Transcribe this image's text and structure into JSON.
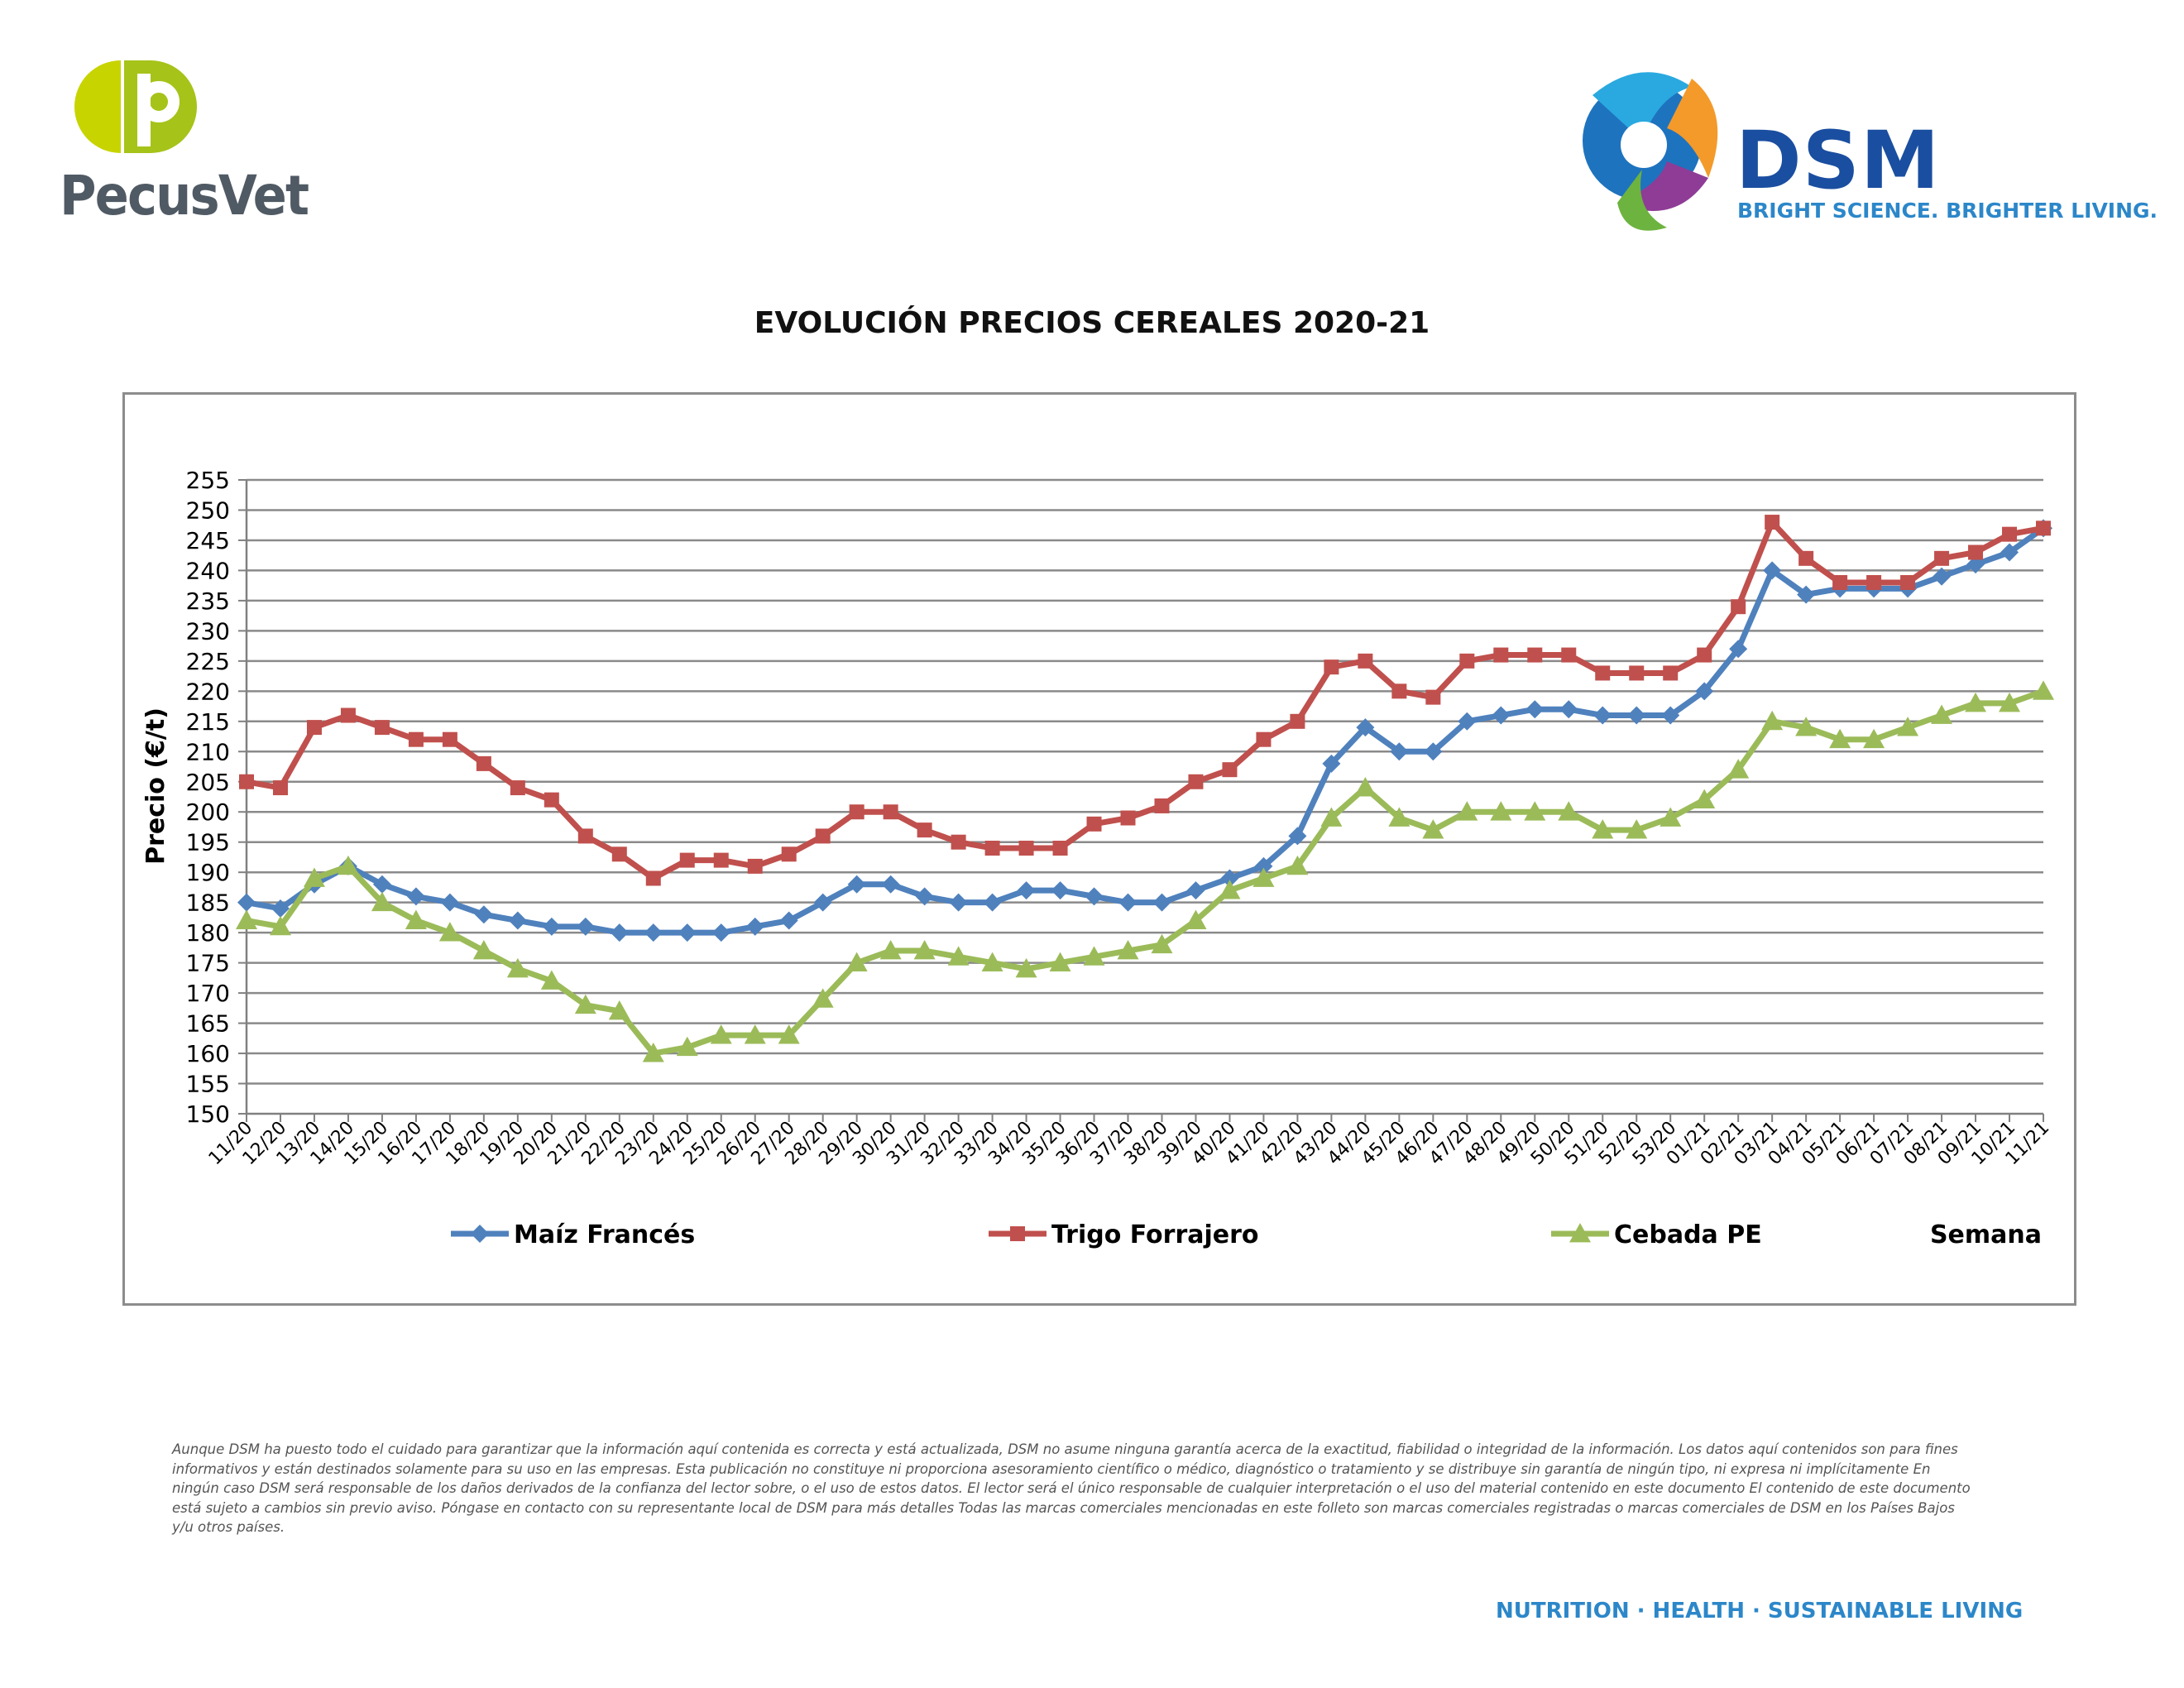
{
  "header": {
    "left_logo_text": "PecusVet",
    "right_logo_name": "DSM",
    "right_logo_tagline": "BRIGHT SCIENCE. BRIGHTER LIVING."
  },
  "chart_data": {
    "type": "line",
    "title": "EVOLUCIÓN PRECIOS CEREALES 2020-21",
    "ylabel": "Precio (€/t)",
    "xlabel": "Semana",
    "ylim": [
      150,
      255
    ],
    "ystep": 5,
    "grid": true,
    "legend": "bottom",
    "categories": [
      "11/20",
      "12/20",
      "13/20",
      "14/20",
      "15/20",
      "16/20",
      "17/20",
      "18/20",
      "19/20",
      "20/20",
      "21/20",
      "22/20",
      "23/20",
      "24/20",
      "25/20",
      "26/20",
      "27/20",
      "28/20",
      "29/20",
      "30/20",
      "31/20",
      "32/20",
      "33/20",
      "34/20",
      "35/20",
      "36/20",
      "37/20",
      "38/20",
      "39/20",
      "40/20",
      "41/20",
      "42/20",
      "43/20",
      "44/20",
      "45/20",
      "46/20",
      "47/20",
      "48/20",
      "49/20",
      "50/20",
      "51/20",
      "52/20",
      "53/20",
      "01/21",
      "02/21",
      "03/21",
      "04/21",
      "05/21",
      "06/21",
      "07/21",
      "08/21",
      "09/21",
      "10/21",
      "11/21"
    ],
    "series": [
      {
        "name": "Maíz Francés",
        "color": "#4f81bd",
        "marker": "diamond",
        "values": [
          185,
          184,
          188,
          191,
          188,
          186,
          185,
          183,
          182,
          181,
          181,
          180,
          180,
          180,
          180,
          181,
          182,
          185,
          188,
          188,
          186,
          185,
          185,
          187,
          187,
          186,
          185,
          185,
          187,
          189,
          191,
          196,
          208,
          214,
          210,
          210,
          215,
          216,
          217,
          217,
          216,
          216,
          216,
          220,
          227,
          240,
          236,
          237,
          237,
          237,
          239,
          241,
          243,
          247
        ]
      },
      {
        "name": "Trigo Forrajero",
        "color": "#c0504d",
        "marker": "square",
        "values": [
          205,
          204,
          214,
          216,
          214,
          212,
          212,
          208,
          204,
          202,
          196,
          193,
          189,
          192,
          192,
          191,
          193,
          196,
          200,
          200,
          197,
          195,
          194,
          194,
          194,
          198,
          199,
          201,
          205,
          207,
          212,
          215,
          224,
          225,
          220,
          219,
          225,
          226,
          226,
          226,
          223,
          223,
          223,
          226,
          234,
          248,
          242,
          238,
          238,
          238,
          242,
          243,
          246,
          247
        ]
      },
      {
        "name": "Cebada PE",
        "color": "#9bbb59",
        "marker": "triangle",
        "values": [
          182,
          181,
          189,
          191,
          185,
          182,
          180,
          177,
          174,
          172,
          168,
          167,
          160,
          161,
          163,
          163,
          163,
          169,
          175,
          177,
          177,
          176,
          175,
          174,
          175,
          176,
          177,
          178,
          182,
          187,
          189,
          191,
          199,
          204,
          199,
          197,
          200,
          200,
          200,
          200,
          197,
          197,
          199,
          202,
          207,
          215,
          214,
          212,
          212,
          214,
          216,
          218,
          218,
          220
        ]
      }
    ]
  },
  "disclaimer": "Aunque DSM ha puesto todo el cuidado para garantizar que la información aquí contenida es correcta y está actualizada, DSM no asume ninguna garantía acerca de la exactitud, fiabilidad o integridad de la información. Los datos aquí contenidos son para fines informativos y están destinados solamente para su uso en las empresas. Esta publicación no constituye ni proporciona asesoramiento científico o médico, diagnóstico o tratamiento y se distribuye sin garantía de ningún tipo, ni expresa ni implícitamente En ningún caso DSM será responsable de los daños derivados de la confianza del lector sobre, o el uso de estos datos. El lector será el único responsable de cualquier interpretación o el uso del material contenido en este documento El contenido de este documento está sujeto a cambios sin previo aviso. Póngase en contacto con su representante local de DSM para más detalles Todas las marcas comerciales mencionadas en este folleto son marcas comerciales registradas o marcas comerciales de DSM en los Países Bajos y/u otros países.",
  "footer": {
    "tagline": "NUTRITION · HEALTH · SUSTAINABLE LIVING"
  }
}
